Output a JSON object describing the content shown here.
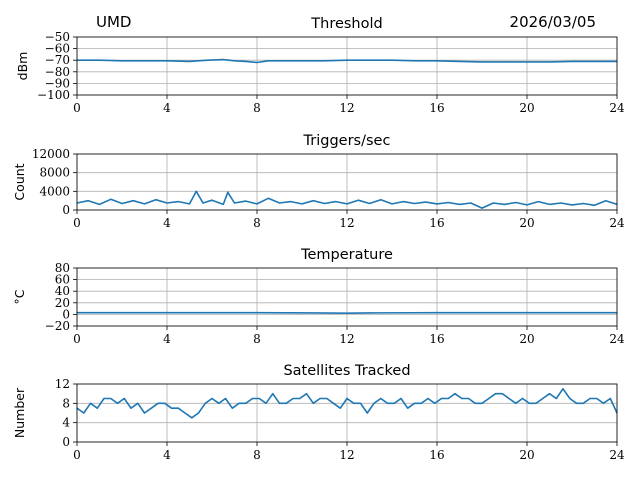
{
  "header": {
    "station": "UMD",
    "date": "2026/03/05"
  },
  "colors": {
    "series": "#1f77b4",
    "grid": "#b0b0b0",
    "axes": "#000000"
  },
  "chart_data": [
    {
      "type": "line",
      "title": "Threshold",
      "xlabel": "",
      "ylabel": "dBm",
      "xlim": [
        0,
        24
      ],
      "ylim": [
        -100,
        -50
      ],
      "xticks": [
        0,
        4,
        8,
        12,
        16,
        20,
        24
      ],
      "yticks": [
        -100,
        -90,
        -80,
        -70,
        -60,
        -50
      ],
      "xtick_labels": [
        "0",
        "4",
        "8",
        "12",
        "16",
        "20",
        "24"
      ],
      "ytick_labels": [
        "−100",
        "−90",
        "−80",
        "−70",
        "−60",
        "−50"
      ],
      "grid": true,
      "series": [
        {
          "x": [
            0,
            1,
            2,
            3,
            4,
            5,
            5.8,
            6.5,
            7,
            7.5,
            8,
            8.5,
            9,
            10,
            11,
            12,
            13,
            14,
            15,
            16,
            17,
            18,
            19,
            20,
            21,
            22,
            23,
            24
          ],
          "values": [
            -70,
            -70,
            -70.5,
            -70.5,
            -70.5,
            -71,
            -70,
            -69.5,
            -70.5,
            -71,
            -72,
            -70.5,
            -70.5,
            -70.5,
            -70.5,
            -70,
            -70,
            -70,
            -70.5,
            -70.5,
            -71,
            -71.5,
            -71.5,
            -71.5,
            -71.5,
            -71,
            -71,
            -71
          ]
        }
      ]
    },
    {
      "type": "line",
      "title": "Triggers/sec",
      "xlabel": "",
      "ylabel": "Count",
      "xlim": [
        0,
        24
      ],
      "ylim": [
        0,
        12000
      ],
      "xticks": [
        0,
        4,
        8,
        12,
        16,
        20,
        24
      ],
      "yticks": [
        0,
        4000,
        8000,
        12000
      ],
      "xtick_labels": [
        "0",
        "4",
        "8",
        "12",
        "16",
        "20",
        "24"
      ],
      "ytick_labels": [
        "0",
        "4000",
        "8000",
        "12000"
      ],
      "grid": true,
      "series": [
        {
          "x": [
            0,
            0.5,
            1,
            1.5,
            2,
            2.5,
            3,
            3.5,
            4,
            4.5,
            5,
            5.3,
            5.6,
            6,
            6.5,
            6.7,
            7,
            7.5,
            8,
            8.5,
            9,
            9.5,
            10,
            10.5,
            11,
            11.5,
            12,
            12.5,
            13,
            13.5,
            14,
            14.5,
            15,
            15.5,
            16,
            16.5,
            17,
            17.5,
            18,
            18.5,
            19,
            19.5,
            20,
            20.5,
            21,
            21.5,
            22,
            22.5,
            23,
            23.5,
            24
          ],
          "values": [
            1500,
            2000,
            1200,
            2300,
            1400,
            2000,
            1300,
            2200,
            1500,
            1800,
            1300,
            4000,
            1500,
            2100,
            1200,
            3800,
            1500,
            1900,
            1300,
            2500,
            1500,
            1800,
            1300,
            2000,
            1400,
            1800,
            1300,
            2100,
            1400,
            2200,
            1300,
            1800,
            1400,
            1700,
            1300,
            1600,
            1200,
            1500,
            400,
            1500,
            1200,
            1600,
            1100,
            1800,
            1200,
            1500,
            1100,
            1400,
            1000,
            2000,
            1200
          ]
        }
      ]
    },
    {
      "type": "line",
      "title": "Temperature",
      "xlabel": "",
      "ylabel": "°C",
      "xlim": [
        0,
        24
      ],
      "ylim": [
        -20,
        80
      ],
      "xticks": [
        0,
        4,
        8,
        12,
        16,
        20,
        24
      ],
      "yticks": [
        -20,
        0,
        20,
        40,
        60,
        80
      ],
      "xtick_labels": [
        "0",
        "4",
        "8",
        "12",
        "16",
        "20",
        "24"
      ],
      "ytick_labels": [
        "−20",
        "0",
        "20",
        "40",
        "60",
        "80"
      ],
      "grid": true,
      "series": [
        {
          "x": [
            0,
            4,
            8,
            10.5,
            12,
            13,
            16,
            20,
            24
          ],
          "values": [
            3,
            3,
            3,
            2.5,
            2,
            2.5,
            3,
            3,
            3
          ]
        }
      ]
    },
    {
      "type": "line",
      "title": "Satellites Tracked",
      "xlabel": "",
      "ylabel": "Number",
      "xlim": [
        0,
        24
      ],
      "ylim": [
        0,
        12
      ],
      "xticks": [
        0,
        4,
        8,
        12,
        16,
        20,
        24
      ],
      "yticks": [
        0,
        4,
        8,
        12
      ],
      "xtick_labels": [
        "0",
        "4",
        "8",
        "12",
        "16",
        "20",
        "24"
      ],
      "ytick_labels": [
        "0",
        "4",
        "8",
        "12"
      ],
      "grid": true,
      "series": [
        {
          "x": [
            0,
            0.3,
            0.6,
            0.9,
            1.2,
            1.5,
            1.8,
            2.1,
            2.4,
            2.7,
            3.0,
            3.3,
            3.6,
            3.9,
            4.2,
            4.5,
            4.8,
            5.1,
            5.4,
            5.7,
            6.0,
            6.3,
            6.6,
            6.9,
            7.2,
            7.5,
            7.8,
            8.1,
            8.4,
            8.7,
            9.0,
            9.3,
            9.6,
            9.9,
            10.2,
            10.5,
            10.8,
            11.1,
            11.4,
            11.7,
            12.0,
            12.3,
            12.6,
            12.9,
            13.2,
            13.5,
            13.8,
            14.1,
            14.4,
            14.7,
            15.0,
            15.3,
            15.6,
            15.9,
            16.2,
            16.5,
            16.8,
            17.1,
            17.4,
            17.7,
            18.0,
            18.3,
            18.6,
            18.9,
            19.2,
            19.5,
            19.8,
            20.1,
            20.4,
            20.7,
            21.0,
            21.3,
            21.6,
            21.9,
            22.2,
            22.5,
            22.8,
            23.1,
            23.4,
            23.7,
            24.0
          ],
          "values": [
            7,
            6,
            8,
            7,
            9,
            9,
            8,
            9,
            7,
            8,
            6,
            7,
            8,
            8,
            7,
            7,
            6,
            5,
            6,
            8,
            9,
            8,
            9,
            7,
            8,
            8,
            9,
            9,
            8,
            10,
            8,
            8,
            9,
            9,
            10,
            8,
            9,
            9,
            8,
            7,
            9,
            8,
            8,
            6,
            8,
            9,
            8,
            8,
            9,
            7,
            8,
            8,
            9,
            8,
            9,
            9,
            10,
            9,
            9,
            8,
            8,
            9,
            10,
            10,
            9,
            8,
            9,
            8,
            8,
            9,
            10,
            9,
            11,
            9,
            8,
            8,
            9,
            9,
            8,
            9,
            6
          ]
        }
      ]
    }
  ]
}
